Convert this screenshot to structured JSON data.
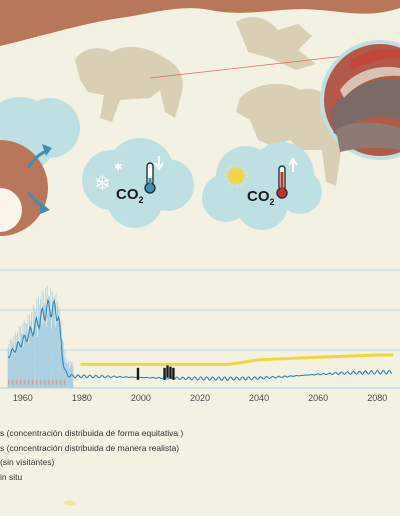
{
  "illustration": {
    "icons": [
      {
        "name": "cold-co2-icon",
        "label": "CO",
        "subscript": "2",
        "weather": "snowflake-icon",
        "thermo": "thermometer-low-icon",
        "arrow": "arrow-down-icon"
      },
      {
        "name": "warm-co2-icon",
        "label": "CO",
        "subscript": "2",
        "weather": "sun-icon",
        "thermo": "thermometer-high-icon",
        "arrow": "arrow-up-icon"
      }
    ],
    "colors": {
      "rock": "#b8775a",
      "bubble": "#bfe0e3",
      "animal": "#d9cfb4",
      "accent_blue": "#3f8fae",
      "thermo_red": "#c8312a"
    }
  },
  "legend": {
    "items": [
      "s (concentración distribuida de forma equitativa )",
      "s (concentración distribuida de manera realista)",
      "(sin visitantes)",
      "in situ"
    ]
  },
  "chart_data": {
    "type": "line",
    "x_ticks": [
      "1960",
      "1980",
      "2000",
      "2020",
      "2040",
      "2060",
      "2080"
    ],
    "xlim": [
      1955,
      2085
    ],
    "grid": "horizontal",
    "series": [
      {
        "color": "#a9cfe0",
        "style": "envelope",
        "x": [
          1955,
          1958,
          1962,
          1965,
          1968,
          1970,
          1972,
          1973,
          1974,
          1975,
          1977
        ],
        "y": [
          0.3,
          0.42,
          0.55,
          0.7,
          0.8,
          0.76,
          0.7,
          0.5,
          0.28,
          0.16,
          0.15
        ]
      },
      {
        "color": "#2e86b9",
        "style": "oscillating",
        "x": [
          1955,
          1958,
          1962,
          1965,
          1968,
          1970,
          1972,
          1973,
          1974,
          1975,
          1977,
          1980,
          2000,
          2020,
          2040,
          2060,
          2080,
          2085
        ],
        "y": [
          0.24,
          0.3,
          0.38,
          0.46,
          0.55,
          0.56,
          0.52,
          0.3,
          0.14,
          0.09,
          0.08,
          0.08,
          0.09,
          0.1,
          0.1,
          0.11,
          0.11,
          0.11
        ]
      },
      {
        "color": "#f2d640",
        "style": "smooth",
        "x": [
          1980,
          2000,
          2030,
          2040,
          2060,
          2080,
          2085
        ],
        "y": [
          0.2,
          0.2,
          0.2,
          0.24,
          0.26,
          0.28,
          0.28
        ]
      },
      {
        "color": "#c9a69a",
        "style": "dashed",
        "x": [
          1955,
          1975
        ],
        "y": [
          0.05,
          0.05
        ]
      },
      {
        "color": "#1a1a1a",
        "style": "markers",
        "x": [
          1999,
          2008,
          2009,
          2010,
          2011
        ],
        "y": [
          0.12,
          0.12,
          0.14,
          0.13,
          0.12
        ]
      }
    ]
  }
}
